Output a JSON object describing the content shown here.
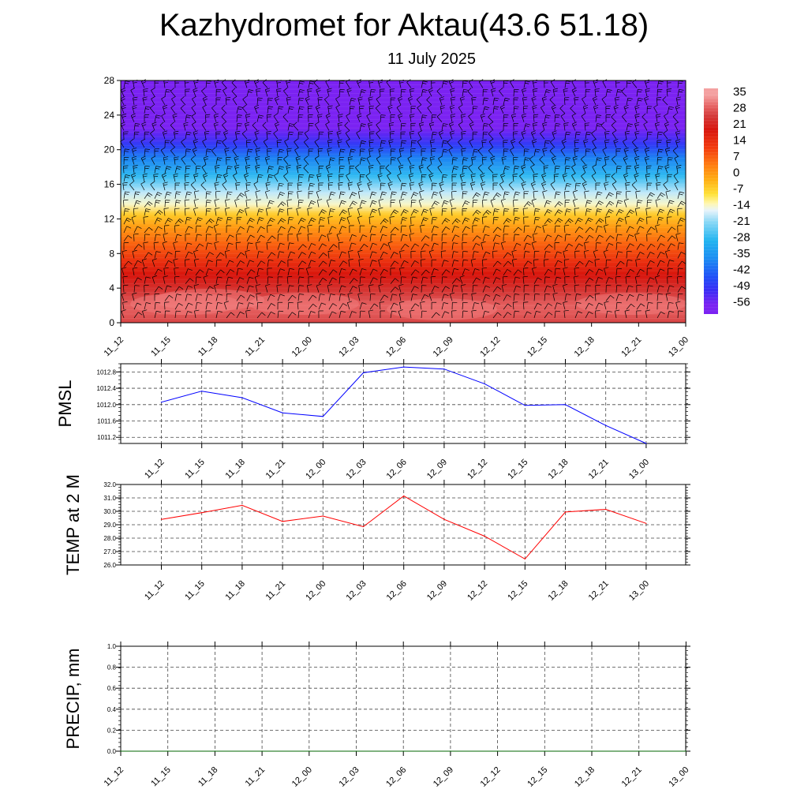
{
  "title": "Kazhydromet for Aktau(43.6 51.18)",
  "subtitle": "11 July 2025",
  "colors": {
    "pmsl_line": "#0000ff",
    "temp_line": "#ff0000",
    "precip_line": "#006400",
    "grid": "#444444",
    "wind_barb": "#000000"
  },
  "chart_data": [
    {
      "type": "heatmap",
      "name": "temperature_cross_section",
      "x": [
        "11_12",
        "11_15",
        "11_18",
        "11_21",
        "12_00",
        "12_03",
        "12_06",
        "12_09",
        "12_12",
        "12_15",
        "12_18",
        "12_21",
        "13_00"
      ],
      "yticks": [
        "0",
        "4",
        "8",
        "12",
        "16",
        "20",
        "24",
        "28"
      ],
      "ylim": [
        0,
        28
      ],
      "colorbar": {
        "labels": [
          "35",
          "28",
          "21",
          "14",
          "7",
          "0",
          "-7",
          "-14",
          "-21",
          "-28",
          "-35",
          "-42",
          "-49",
          "-56"
        ],
        "range": [
          -56,
          35
        ],
        "stops": [
          {
            "v": -60,
            "c": "#7b22f2"
          },
          {
            "v": -56,
            "c": "#7b22f2"
          },
          {
            "v": -50,
            "c": "#3c2cf5"
          },
          {
            "v": -44,
            "c": "#1f4ef7"
          },
          {
            "v": -36,
            "c": "#1b8cf2"
          },
          {
            "v": -28,
            "c": "#22b5f0"
          },
          {
            "v": -20,
            "c": "#8ad8f6"
          },
          {
            "v": -15,
            "c": "#e8f4fb"
          },
          {
            "v": -12,
            "c": "#fff7b0"
          },
          {
            "v": -8,
            "c": "#ffe23a"
          },
          {
            "v": -2,
            "c": "#ffb114"
          },
          {
            "v": 5,
            "c": "#ff7a10"
          },
          {
            "v": 12,
            "c": "#f33c0e"
          },
          {
            "v": 20,
            "c": "#d8150d"
          },
          {
            "v": 26,
            "c": "#d43a3a"
          },
          {
            "v": 30,
            "c": "#e56060"
          },
          {
            "v": 35,
            "c": "#f4a0a0"
          }
        ]
      },
      "profile": [
        {
          "level": 0,
          "value": 27
        },
        {
          "level": 1,
          "value": 29
        },
        {
          "level": 2,
          "value": 30
        },
        {
          "level": 3,
          "value": 27
        },
        {
          "level": 4,
          "value": 24
        },
        {
          "level": 5.5,
          "value": 20
        },
        {
          "level": 7,
          "value": 15
        },
        {
          "level": 9,
          "value": 8
        },
        {
          "level": 11,
          "value": 1
        },
        {
          "level": 12.5,
          "value": -5
        },
        {
          "level": 13.7,
          "value": -13
        },
        {
          "level": 15,
          "value": -17
        },
        {
          "level": 17,
          "value": -27
        },
        {
          "level": 19,
          "value": -37
        },
        {
          "level": 20.5,
          "value": -47
        },
        {
          "level": 21.5,
          "value": -52
        },
        {
          "level": 22.5,
          "value": -56
        },
        {
          "level": 24,
          "value": -58
        },
        {
          "level": 28,
          "value": -60
        }
      ]
    },
    {
      "type": "line",
      "name": "pmsl",
      "ylabel": "PMSL",
      "x": [
        "11_12",
        "11_15",
        "11_18",
        "11_21",
        "12_00",
        "12_03",
        "12_06",
        "12_09",
        "12_12",
        "12_15",
        "12_18",
        "12_21",
        "13_00"
      ],
      "values": [
        1012.06,
        1012.33,
        1012.17,
        1011.8,
        1011.71,
        1012.78,
        1012.92,
        1012.87,
        1012.51,
        1011.98,
        1012.0,
        1011.49,
        1011.05
      ],
      "yticks": [
        "1011.2",
        "1011.6",
        "1012.0",
        "1012.4",
        "1012.8"
      ],
      "ylim": [
        1011.05,
        1013.0
      ]
    },
    {
      "type": "line",
      "name": "temp_2m",
      "ylabel": "TEMP at 2 M",
      "x": [
        "11_12",
        "11_15",
        "11_18",
        "11_21",
        "12_00",
        "12_03",
        "12_06",
        "12_09",
        "12_12",
        "12_15",
        "12_18",
        "12_21",
        "13_00"
      ],
      "values": [
        29.4,
        29.9,
        30.45,
        29.25,
        29.65,
        28.85,
        31.15,
        29.4,
        28.15,
        26.45,
        29.95,
        30.15,
        29.1
      ],
      "yticks": [
        "26.0",
        "27.0",
        "28.0",
        "29.0",
        "30.0",
        "31.0",
        "32.0"
      ],
      "ylim": [
        26.0,
        32.0
      ]
    },
    {
      "type": "line",
      "name": "precip",
      "ylabel": "PRECIP, mm",
      "x": [
        "11_12",
        "11_15",
        "11_18",
        "11_21",
        "12_00",
        "12_03",
        "12_06",
        "12_09",
        "12_12",
        "12_15",
        "12_18",
        "12_21",
        "13_00"
      ],
      "values": [
        0,
        0,
        0,
        0,
        0,
        0,
        0,
        0,
        0,
        0,
        0,
        0,
        0
      ],
      "yticks": [
        "0.0",
        "0.2",
        "0.4",
        "0.6",
        "0.8",
        "1.0"
      ],
      "ylim": [
        0.0,
        1.0
      ]
    }
  ]
}
